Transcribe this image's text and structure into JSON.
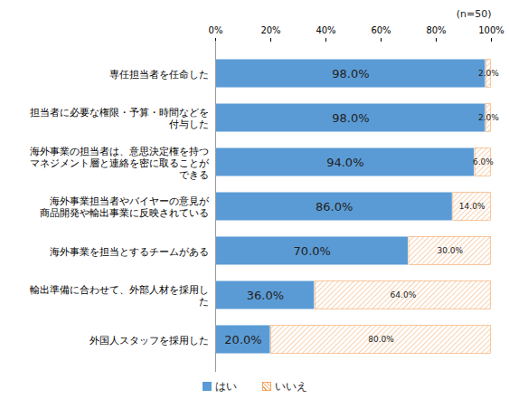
{
  "chart_data": {
    "type": "bar",
    "orientation": "horizontal",
    "stacked": true,
    "data_labels": true,
    "grid": false,
    "legend": "bottom",
    "annotations": [
      "(n=50)"
    ],
    "categories": [
      "専任担当者を任命した",
      "担当者に必要な権限・予算・時間などを\n付与した",
      "海外事業の担当者は、意思決定権を持つ\nマネジメント層と連絡を密に取ることが\nできる",
      "海外事業担当者やバイヤーの意見が\n商品開発や輸出事業に反映されている",
      "海外事業を担当とするチームがある",
      "輸出準備に合わせて、外部人材を採用し\nた",
      "外国人スタッフを採用した"
    ],
    "series": [
      {
        "name": "はい",
        "color": "#5b9bd5",
        "values": [
          98,
          98,
          94,
          86,
          70,
          36,
          20
        ],
        "value_labels": [
          "98.0%",
          "98.0%",
          "94.0%",
          "86.0%",
          "70.0%",
          "36.0%",
          "20.0%"
        ]
      },
      {
        "name": "いいえ",
        "color": "#f4a460",
        "values": [
          2,
          2,
          6,
          14,
          30,
          64,
          80
        ],
        "value_labels": [
          "2.0%",
          "2.0%",
          "6.0%",
          "14.0%",
          "30.0%",
          "64.0%",
          "80.0%"
        ]
      }
    ],
    "xlim": [
      0,
      100
    ],
    "xticks": [
      {
        "value": 0,
        "label": "0%"
      },
      {
        "value": 20,
        "label": "20%"
      },
      {
        "value": 40,
        "label": "40%"
      },
      {
        "value": 60,
        "label": "60%"
      },
      {
        "value": 80,
        "label": "80%"
      },
      {
        "value": 100,
        "label": "100%"
      }
    ]
  }
}
